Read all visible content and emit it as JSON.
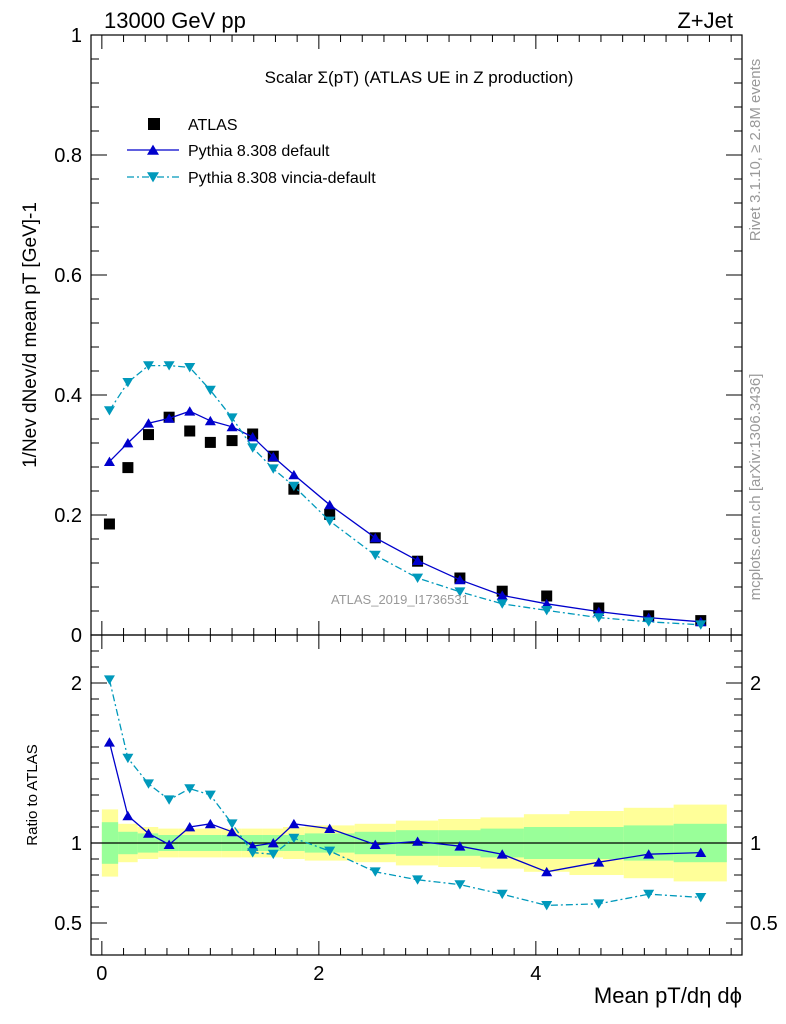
{
  "header": {
    "left": "13000 GeV pp",
    "right": "Z+Jet"
  },
  "side_labels": {
    "rivet": "Rivet 3.1.10, ≥ 2.8M events",
    "mcplots": "mcplots.cern.ch [arXiv:1306.3436]"
  },
  "chart_data": [
    {
      "type": "scatter",
      "panel": "main",
      "title": "Scalar Σ(pT) (ATLAS UE in Z production)",
      "xlabel": "Mean pT/dη dϕ",
      "ylabel": "1/Nev dNev/d mean pT [GeV]-1",
      "xlim": [
        -0.1,
        5.9
      ],
      "ylim": [
        0,
        1.0
      ],
      "yticks": [
        "0",
        "0.2",
        "0.4",
        "0.6",
        "0.8",
        "1"
      ],
      "watermark": "ATLAS_2019_I1736531",
      "legend_position": "top-left",
      "series": [
        {
          "name": "ATLAS",
          "style": "data",
          "color": "#000000",
          "x": [
            0.07,
            0.24,
            0.43,
            0.62,
            0.81,
            1.0,
            1.2,
            1.39,
            1.58,
            1.77,
            2.1,
            2.52,
            2.91,
            3.3,
            3.69,
            4.1,
            4.58,
            5.04,
            5.52
          ],
          "y": [
            0.185,
            0.279,
            0.334,
            0.363,
            0.34,
            0.321,
            0.324,
            0.335,
            0.298,
            0.243,
            0.201,
            0.162,
            0.123,
            0.095,
            0.073,
            0.065,
            0.045,
            0.032,
            0.024
          ]
        },
        {
          "name": "Pythia 8.308 default",
          "style": "solid",
          "color": "#0000cc",
          "x": [
            0.07,
            0.24,
            0.43,
            0.62,
            0.81,
            1.0,
            1.2,
            1.39,
            1.58,
            1.77,
            2.1,
            2.52,
            2.91,
            3.3,
            3.69,
            4.1,
            4.58,
            5.04,
            5.52
          ],
          "y": [
            0.289,
            0.32,
            0.353,
            0.361,
            0.373,
            0.357,
            0.347,
            0.33,
            0.297,
            0.267,
            0.217,
            0.162,
            0.124,
            0.092,
            0.066,
            0.052,
            0.039,
            0.029,
            0.022
          ]
        },
        {
          "name": "Pythia 8.308 vincia-default",
          "style": "dashdot",
          "color": "#0099bb",
          "x": [
            0.07,
            0.24,
            0.43,
            0.62,
            0.81,
            1.0,
            1.2,
            1.39,
            1.58,
            1.77,
            2.1,
            2.52,
            2.91,
            3.3,
            3.69,
            4.1,
            4.58,
            5.04,
            5.52
          ],
          "y": [
            0.374,
            0.421,
            0.449,
            0.449,
            0.446,
            0.408,
            0.362,
            0.312,
            0.277,
            0.248,
            0.19,
            0.133,
            0.095,
            0.072,
            0.052,
            0.041,
            0.029,
            0.022,
            0.017
          ]
        }
      ]
    },
    {
      "type": "line",
      "panel": "ratio",
      "ylabel": "Ratio to ATLAS",
      "xlabel": "Mean pT/dη dϕ",
      "xlim": [
        -0.1,
        5.9
      ],
      "ylim": [
        0.3,
        2.3
      ],
      "yticks": [
        "0.5",
        "1",
        "2"
      ],
      "xticks": [
        "0",
        "2",
        "4"
      ],
      "reference_line": 1.0,
      "band_edges": [
        0,
        0.15,
        0.33,
        0.52,
        0.71,
        0.9,
        1.1,
        1.29,
        1.48,
        1.67,
        1.87,
        2.33,
        2.71,
        3.1,
        3.49,
        3.89,
        4.31,
        4.81,
        5.27,
        5.76
      ],
      "band_inner": [
        0.13,
        0.07,
        0.06,
        0.05,
        0.05,
        0.05,
        0.05,
        0.05,
        0.05,
        0.05,
        0.06,
        0.07,
        0.08,
        0.08,
        0.09,
        0.1,
        0.1,
        0.11,
        0.12
      ],
      "band_outer": [
        0.21,
        0.12,
        0.1,
        0.09,
        0.09,
        0.09,
        0.09,
        0.09,
        0.09,
        0.1,
        0.11,
        0.12,
        0.14,
        0.15,
        0.16,
        0.18,
        0.2,
        0.22,
        0.24
      ],
      "band_colors": {
        "inner": "#99ff99",
        "outer": "#ffff99"
      },
      "series": [
        {
          "name": "Pythia 8.308 default",
          "style": "solid",
          "color": "#0000cc",
          "x": [
            0.07,
            0.24,
            0.43,
            0.62,
            0.81,
            1.0,
            1.2,
            1.39,
            1.58,
            1.77,
            2.1,
            2.52,
            2.91,
            3.3,
            3.69,
            4.1,
            4.58,
            5.04,
            5.52
          ],
          "y": [
            1.63,
            1.17,
            1.06,
            0.99,
            1.1,
            1.12,
            1.07,
            0.98,
            1.0,
            1.12,
            1.09,
            0.99,
            1.01,
            0.98,
            0.93,
            0.82,
            0.88,
            0.93,
            0.94
          ]
        },
        {
          "name": "Pythia 8.308 vincia-default",
          "style": "dashdot",
          "color": "#0099bb",
          "x": [
            0.07,
            0.24,
            0.43,
            0.62,
            0.81,
            1.0,
            1.2,
            1.39,
            1.58,
            1.77,
            2.1,
            2.52,
            2.91,
            3.3,
            3.69,
            4.1,
            4.58,
            5.04,
            5.52
          ],
          "y": [
            2.02,
            1.53,
            1.37,
            1.27,
            1.34,
            1.3,
            1.12,
            0.94,
            0.93,
            1.03,
            0.95,
            0.82,
            0.77,
            0.74,
            0.68,
            0.61,
            0.62,
            0.68,
            0.66
          ]
        }
      ]
    }
  ]
}
